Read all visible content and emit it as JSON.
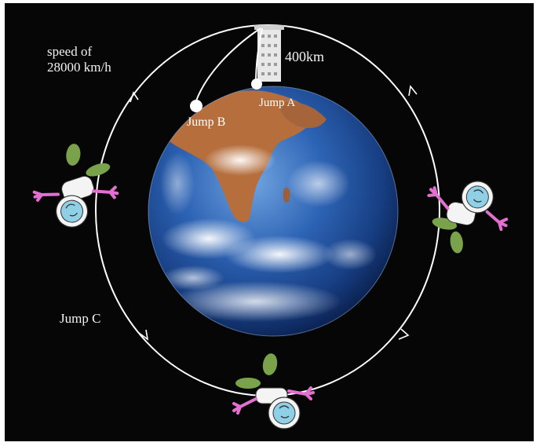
{
  "labels": {
    "speed_line1": "speed of",
    "speed_line2": "28000 km/h",
    "altitude": "400km",
    "jump_a": "Jump A",
    "jump_b": "Jump B",
    "jump_c": "Jump C"
  },
  "icons": {
    "planet": "earth-globe",
    "tower": "space-tower",
    "figure": "astronaut-icon"
  },
  "colors": {
    "background": "#060606",
    "orbit": "#ffffff",
    "ocean": "#1f4f9a",
    "land": "#b06a3a",
    "suit": "#ffffff",
    "gloves": "#e36fd0",
    "pack": "#7aa24a"
  }
}
